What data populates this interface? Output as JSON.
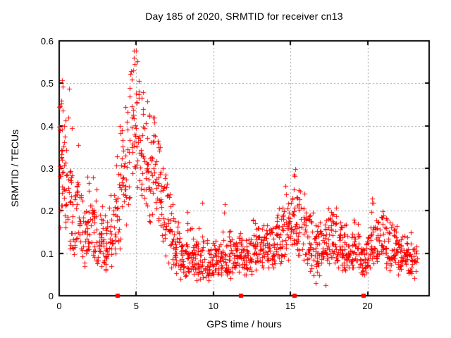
{
  "page": {
    "background": "#ffffff"
  },
  "chart_data": {
    "type": "scatter",
    "title": "Day 185 of 2020, SRMTID for receiver cn13",
    "xlabel": "GPS time / hours",
    "ylabel": "SRMTID / TECUs",
    "xlim": [
      0,
      24
    ],
    "ylim": [
      0,
      0.6
    ],
    "xticks": [
      0,
      5,
      10,
      15,
      20
    ],
    "xtick_labels": [
      "0",
      "5",
      "10",
      "15",
      "20"
    ],
    "yticks": [
      0,
      0.1,
      0.2,
      0.3,
      0.4,
      0.5,
      0.6
    ],
    "ytick_labels": [
      "0",
      "0.1",
      "0.2",
      "0.3",
      "0.4",
      "0.5",
      "0.6"
    ],
    "grid": {
      "show": true,
      "color": "#9b9b9b",
      "dash": [
        2,
        3
      ]
    },
    "border_color": "#000000",
    "marker": {
      "shape": "plus",
      "color": "#ff0000",
      "size": 7
    },
    "axis_markers": {
      "shape": "filled-square",
      "color": "#ff0000",
      "size": 6,
      "y": 0,
      "x": [
        3.79,
        11.78,
        15.25,
        19.77
      ]
    },
    "highlight_points": [
      [
        4.97,
        0.577
      ],
      [
        4.88,
        0.545
      ],
      [
        5.06,
        0.552
      ],
      [
        4.8,
        0.53
      ],
      [
        5.15,
        0.505
      ],
      [
        0.18,
        0.508
      ],
      [
        0.21,
        0.492
      ],
      [
        0.62,
        0.488
      ],
      [
        0.15,
        0.452
      ],
      [
        6.1,
        0.42
      ],
      [
        3.95,
        0.4
      ],
      [
        0.82,
        0.395
      ],
      [
        15.32,
        0.298
      ],
      [
        15.2,
        0.285
      ],
      [
        20.3,
        0.228
      ],
      [
        9.3,
        0.218
      ],
      [
        10.72,
        0.215
      ],
      [
        8.3,
        0.198
      ],
      [
        17.45,
        0.205
      ],
      [
        12.55,
        0.178
      ],
      [
        21.45,
        0.172
      ],
      [
        16.62,
        0.03
      ],
      [
        17.3,
        0.025
      ]
    ],
    "scatter_profile": {
      "note": "dense scatter summarized as 0.25h bins: [x_start, band_low, band_center, band_high, max_outlier, n_points?]",
      "bin_width": 0.25,
      "default_points_per_bin": 16,
      "seed": 185,
      "bins": [
        [
          0.0,
          0.12,
          0.27,
          0.45,
          0.51,
          24
        ],
        [
          0.25,
          0.11,
          0.24,
          0.42,
          0.5,
          20
        ],
        [
          0.5,
          0.1,
          0.2,
          0.33,
          0.49
        ],
        [
          0.75,
          0.09,
          0.18,
          0.3,
          0.47
        ],
        [
          1.0,
          0.09,
          0.17,
          0.28,
          0.4
        ],
        [
          1.25,
          0.08,
          0.15,
          0.25,
          0.37
        ],
        [
          1.5,
          0.07,
          0.14,
          0.24,
          0.37
        ],
        [
          1.75,
          0.07,
          0.14,
          0.22,
          0.37
        ],
        [
          2.0,
          0.07,
          0.14,
          0.22,
          0.32
        ],
        [
          2.25,
          0.06,
          0.13,
          0.2,
          0.3
        ],
        [
          2.5,
          0.06,
          0.12,
          0.2,
          0.25
        ],
        [
          2.75,
          0.06,
          0.12,
          0.19,
          0.22
        ],
        [
          3.0,
          0.06,
          0.11,
          0.18,
          0.2
        ],
        [
          3.25,
          0.07,
          0.13,
          0.22,
          0.25
        ],
        [
          3.5,
          0.08,
          0.16,
          0.28,
          0.33
        ],
        [
          3.75,
          0.1,
          0.2,
          0.35,
          0.4
        ],
        [
          4.0,
          0.12,
          0.25,
          0.4,
          0.45
        ],
        [
          4.25,
          0.15,
          0.28,
          0.44,
          0.48
        ],
        [
          4.5,
          0.18,
          0.33,
          0.5,
          0.53
        ],
        [
          4.75,
          0.22,
          0.37,
          0.53,
          0.58
        ],
        [
          5.0,
          0.2,
          0.36,
          0.52,
          0.55
        ],
        [
          5.25,
          0.18,
          0.33,
          0.48,
          0.5
        ],
        [
          5.5,
          0.17,
          0.31,
          0.44,
          0.47
        ],
        [
          5.75,
          0.16,
          0.3,
          0.42,
          0.44
        ],
        [
          6.0,
          0.15,
          0.29,
          0.4,
          0.42
        ],
        [
          6.25,
          0.13,
          0.26,
          0.37,
          0.4
        ],
        [
          6.5,
          0.11,
          0.22,
          0.32,
          0.35
        ],
        [
          6.75,
          0.09,
          0.18,
          0.28,
          0.3
        ],
        [
          7.0,
          0.07,
          0.15,
          0.24,
          0.26
        ],
        [
          7.25,
          0.06,
          0.12,
          0.2,
          0.22
        ],
        [
          7.5,
          0.05,
          0.1,
          0.17,
          0.19
        ],
        [
          7.75,
          0.04,
          0.09,
          0.15,
          0.17
        ],
        [
          8.0,
          0.04,
          0.08,
          0.13,
          0.2
        ],
        [
          8.25,
          0.04,
          0.08,
          0.13,
          0.18
        ],
        [
          8.5,
          0.04,
          0.08,
          0.13,
          0.18
        ],
        [
          8.75,
          0.03,
          0.08,
          0.13,
          0.15
        ],
        [
          9.0,
          0.03,
          0.08,
          0.13,
          0.18
        ],
        [
          9.25,
          0.03,
          0.08,
          0.13,
          0.22
        ],
        [
          9.5,
          0.03,
          0.07,
          0.12,
          0.15
        ],
        [
          9.75,
          0.03,
          0.07,
          0.12,
          0.14
        ],
        [
          10.0,
          0.04,
          0.08,
          0.13,
          0.15
        ],
        [
          10.25,
          0.04,
          0.08,
          0.13,
          0.18
        ],
        [
          10.5,
          0.04,
          0.08,
          0.14,
          0.2
        ],
        [
          10.75,
          0.04,
          0.08,
          0.14,
          0.22
        ],
        [
          11.0,
          0.04,
          0.08,
          0.13,
          0.16
        ],
        [
          11.25,
          0.04,
          0.08,
          0.13,
          0.15
        ],
        [
          11.5,
          0.04,
          0.09,
          0.14,
          0.16
        ],
        [
          11.75,
          0.04,
          0.09,
          0.14,
          0.17
        ],
        [
          12.0,
          0.05,
          0.09,
          0.15,
          0.17
        ],
        [
          12.25,
          0.05,
          0.09,
          0.15,
          0.18
        ],
        [
          12.5,
          0.05,
          0.1,
          0.16,
          0.18
        ],
        [
          12.75,
          0.05,
          0.1,
          0.16,
          0.19
        ],
        [
          13.0,
          0.05,
          0.1,
          0.16,
          0.2
        ],
        [
          13.25,
          0.05,
          0.1,
          0.16,
          0.2
        ],
        [
          13.5,
          0.06,
          0.11,
          0.17,
          0.22
        ],
        [
          13.75,
          0.06,
          0.11,
          0.17,
          0.22
        ],
        [
          14.0,
          0.06,
          0.12,
          0.19,
          0.25
        ],
        [
          14.25,
          0.06,
          0.12,
          0.19,
          0.25
        ],
        [
          14.5,
          0.07,
          0.14,
          0.22,
          0.27
        ],
        [
          14.75,
          0.08,
          0.15,
          0.24,
          0.28
        ],
        [
          15.0,
          0.09,
          0.17,
          0.26,
          0.29
        ],
        [
          15.25,
          0.09,
          0.17,
          0.26,
          0.3
        ],
        [
          15.5,
          0.08,
          0.15,
          0.23,
          0.26
        ],
        [
          15.75,
          0.07,
          0.14,
          0.22,
          0.24
        ],
        [
          16.0,
          0.05,
          0.12,
          0.19,
          0.21
        ],
        [
          16.25,
          0.04,
          0.11,
          0.18,
          0.2
        ],
        [
          16.5,
          0.03,
          0.1,
          0.16,
          0.18
        ],
        [
          16.75,
          0.03,
          0.1,
          0.16,
          0.18
        ],
        [
          17.0,
          0.05,
          0.12,
          0.18,
          0.2
        ],
        [
          17.25,
          0.05,
          0.12,
          0.18,
          0.2
        ],
        [
          17.5,
          0.06,
          0.13,
          0.19,
          0.21
        ],
        [
          17.75,
          0.06,
          0.13,
          0.19,
          0.21
        ],
        [
          18.0,
          0.05,
          0.1,
          0.16,
          0.18
        ],
        [
          18.25,
          0.04,
          0.1,
          0.16,
          0.17
        ],
        [
          18.5,
          0.04,
          0.09,
          0.15,
          0.17
        ],
        [
          18.75,
          0.04,
          0.09,
          0.15,
          0.16
        ],
        [
          19.0,
          0.05,
          0.1,
          0.16,
          0.18
        ],
        [
          19.25,
          0.05,
          0.1,
          0.16,
          0.18
        ],
        [
          19.5,
          0.04,
          0.08,
          0.13,
          0.15
        ],
        [
          19.75,
          0.04,
          0.08,
          0.13,
          0.15
        ],
        [
          20.0,
          0.05,
          0.11,
          0.17,
          0.19
        ],
        [
          20.25,
          0.05,
          0.11,
          0.17,
          0.23
        ],
        [
          20.5,
          0.06,
          0.12,
          0.18,
          0.2
        ],
        [
          20.75,
          0.06,
          0.12,
          0.18,
          0.2
        ],
        [
          21.0,
          0.06,
          0.11,
          0.17,
          0.19
        ],
        [
          21.25,
          0.06,
          0.11,
          0.17,
          0.19
        ],
        [
          21.5,
          0.05,
          0.1,
          0.16,
          0.18
        ],
        [
          21.75,
          0.05,
          0.1,
          0.16,
          0.18
        ],
        [
          22.0,
          0.04,
          0.09,
          0.14,
          0.16
        ],
        [
          22.25,
          0.04,
          0.09,
          0.14,
          0.16
        ],
        [
          22.5,
          0.04,
          0.09,
          0.14,
          0.15
        ],
        [
          22.75,
          0.04,
          0.08,
          0.13,
          0.15
        ],
        [
          23.0,
          0.04,
          0.08,
          0.13,
          0.14,
          12
        ]
      ]
    }
  }
}
